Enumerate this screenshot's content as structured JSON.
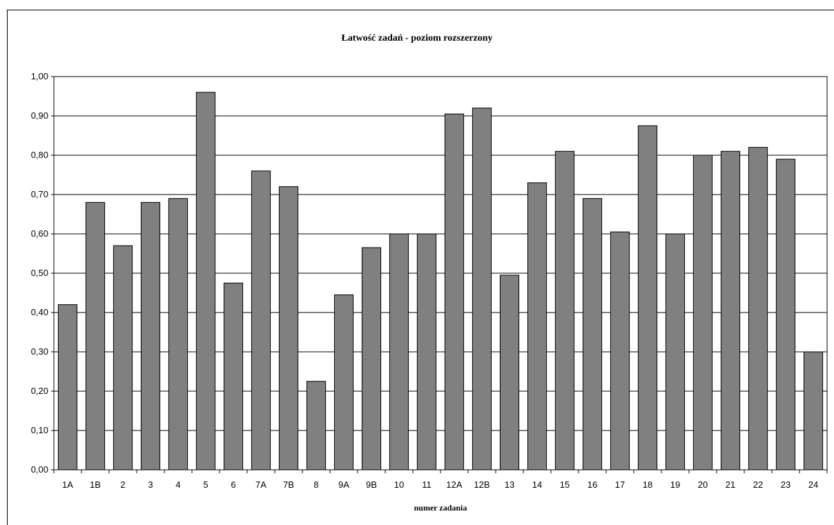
{
  "chart_data": {
    "type": "bar",
    "title": "Łatwość zadań - poziom rozszerzony",
    "xlabel": "numer zadania",
    "ylabel": "",
    "ylim": [
      0,
      1
    ],
    "yticks": [
      "0,00",
      "0,10",
      "0,20",
      "0,30",
      "0,40",
      "0,50",
      "0,60",
      "0,70",
      "0,80",
      "0,90",
      "1,00"
    ],
    "grid": true,
    "bar_color": "#808080",
    "categories": [
      "1A",
      "1B",
      "2",
      "3",
      "4",
      "5",
      "6",
      "7A",
      "7B",
      "8",
      "9A",
      "9B",
      "10",
      "11",
      "12A",
      "12B",
      "13",
      "14",
      "15",
      "16",
      "17",
      "18",
      "19",
      "20",
      "21",
      "22",
      "23",
      "24"
    ],
    "values": [
      0.42,
      0.68,
      0.57,
      0.68,
      0.69,
      0.96,
      0.475,
      0.76,
      0.72,
      0.225,
      0.445,
      0.565,
      0.6,
      0.6,
      0.905,
      0.92,
      0.495,
      0.73,
      0.81,
      0.69,
      0.605,
      0.875,
      0.6,
      0.8,
      0.81,
      0.82,
      0.79,
      0.3
    ]
  }
}
